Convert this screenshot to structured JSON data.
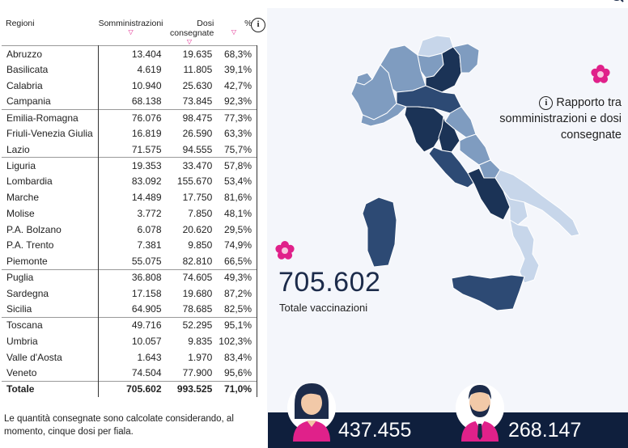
{
  "table": {
    "headers": {
      "regioni": "Regioni",
      "somministrazioni": "Somministrazioni",
      "dosi_consegnate": "Dosi consegnate",
      "percent": "%"
    },
    "sort_icon": "sort-down-icon",
    "rows": [
      {
        "regione": "Abruzzo",
        "somministrazioni": "13.404",
        "dosi": "19.635",
        "pct": "68,3%"
      },
      {
        "regione": "Basilicata",
        "somministrazioni": "4.619",
        "dosi": "11.805",
        "pct": "39,1%"
      },
      {
        "regione": "Calabria",
        "somministrazioni": "10.940",
        "dosi": "25.630",
        "pct": "42,7%"
      },
      {
        "regione": "Campania",
        "somministrazioni": "68.138",
        "dosi": "73.845",
        "pct": "92,3%"
      },
      {
        "regione": "Emilia-Romagna",
        "somministrazioni": "76.076",
        "dosi": "98.475",
        "pct": "77,3%"
      },
      {
        "regione": "Friuli-Venezia Giulia",
        "somministrazioni": "16.819",
        "dosi": "26.590",
        "pct": "63,3%"
      },
      {
        "regione": "Lazio",
        "somministrazioni": "71.575",
        "dosi": "94.555",
        "pct": "75,7%"
      },
      {
        "regione": "Liguria",
        "somministrazioni": "19.353",
        "dosi": "33.470",
        "pct": "57,8%"
      },
      {
        "regione": "Lombardia",
        "somministrazioni": "83.092",
        "dosi": "155.670",
        "pct": "53,4%"
      },
      {
        "regione": "Marche",
        "somministrazioni": "14.489",
        "dosi": "17.750",
        "pct": "81,6%"
      },
      {
        "regione": "Molise",
        "somministrazioni": "3.772",
        "dosi": "7.850",
        "pct": "48,1%"
      },
      {
        "regione": "P.A. Bolzano",
        "somministrazioni": "6.078",
        "dosi": "20.620",
        "pct": "29,5%"
      },
      {
        "regione": "P.A. Trento",
        "somministrazioni": "7.381",
        "dosi": "9.850",
        "pct": "74,9%"
      },
      {
        "regione": "Piemonte",
        "somministrazioni": "55.075",
        "dosi": "82.810",
        "pct": "66,5%"
      },
      {
        "regione": "Puglia",
        "somministrazioni": "36.808",
        "dosi": "74.605",
        "pct": "49,3%"
      },
      {
        "regione": "Sardegna",
        "somministrazioni": "17.158",
        "dosi": "19.680",
        "pct": "87,2%"
      },
      {
        "regione": "Sicilia",
        "somministrazioni": "64.905",
        "dosi": "78.685",
        "pct": "82,5%"
      },
      {
        "regione": "Toscana",
        "somministrazioni": "49.716",
        "dosi": "52.295",
        "pct": "95,1%"
      },
      {
        "regione": "Umbria",
        "somministrazioni": "10.057",
        "dosi": "9.835",
        "pct": "102,3%"
      },
      {
        "regione": "Valle d'Aosta",
        "somministrazioni": "1.643",
        "dosi": "1.970",
        "pct": "83,4%"
      },
      {
        "regione": "Veneto",
        "somministrazioni": "74.504",
        "dosi": "77.900",
        "pct": "95,6%"
      }
    ],
    "group_starts": [
      "Emilia-Romagna",
      "Liguria",
      "Puglia",
      "Toscana"
    ],
    "total": {
      "label": "Totale",
      "somministrazioni": "705.602",
      "dosi": "993.525",
      "pct": "71,0%"
    }
  },
  "info_icon": "info-icon",
  "note": "Le quantità consegnate sono calcolate considerando, al momento, cinque dosi per fiala.",
  "map": {
    "title": "Rapporto tra somministrazioni e dosi consegnate",
    "title_icon": "info-icon",
    "flower_icon": "flower-icon",
    "colors": {
      "light": "#c7d6ea",
      "mid": "#7f9cc0",
      "dark": "#2d4a74",
      "darkest": "#1b3356"
    }
  },
  "totals": {
    "value": "705.602",
    "label": "Totale vaccinazioni"
  },
  "gender": {
    "female_value": "437.455",
    "male_value": "268.147",
    "female_icon": "female-avatar-icon",
    "male_icon": "male-avatar-icon"
  },
  "colors": {
    "accent_pink": "#e0218a",
    "navy": "#0f1f3d",
    "panel_bg": "#f4f6fb"
  }
}
